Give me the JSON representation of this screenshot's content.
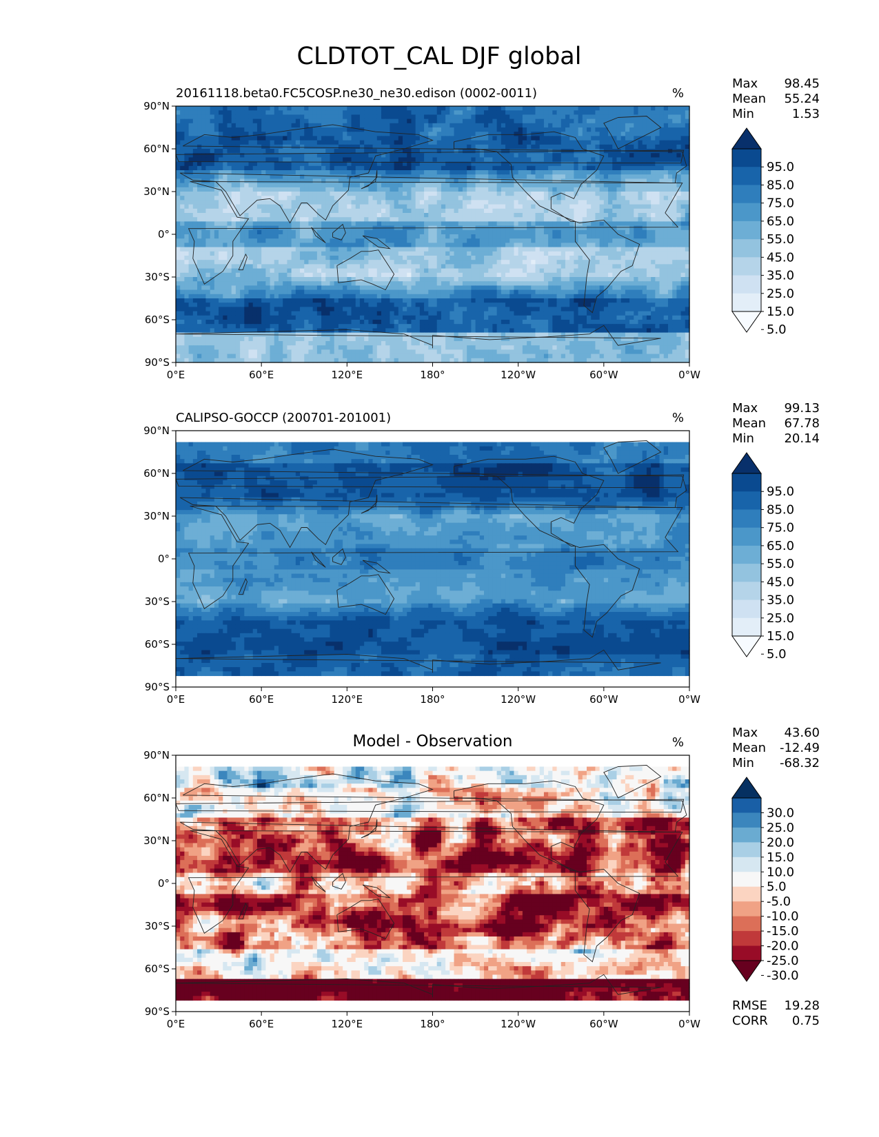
{
  "figure_title": "CLDTOT_CAL DJF global",
  "colors": {
    "blues": [
      "#f7fbff",
      "#e3eef8",
      "#cfe1f2",
      "#b5d4e9",
      "#93c3df",
      "#6daed5",
      "#4b97c9",
      "#2f7ebc",
      "#1864aa",
      "#0a4a90",
      "#08306b"
    ],
    "diff": [
      "#67001f",
      "#980c27",
      "#c0393a",
      "#dc6f58",
      "#f0a285",
      "#fbd4c1",
      "#f7f7f7",
      "#d6e7f1",
      "#a9cfe5",
      "#6aabd1",
      "#3b86bd",
      "#195fa6",
      "#053061"
    ],
    "continent_line": "#222222"
  },
  "chart_data": [
    {
      "type": "heatmap",
      "title_left": "20161118.beta0.FC5COSP.ne30_ne30.edison (0002-0011)",
      "title_center": "",
      "units": "%",
      "stats": [
        {
          "label": "Max",
          "value": "98.45"
        },
        {
          "label": "Mean",
          "value": "55.24"
        },
        {
          "label": "Min",
          "value": "1.53"
        }
      ],
      "colorbar_levels": [
        "95.0",
        "85.0",
        "75.0",
        "65.0",
        "55.0",
        "45.0",
        "35.0",
        "25.0",
        "15.0",
        "5.0"
      ],
      "extra_stats": [],
      "lat_range": [
        -90,
        90
      ],
      "y_ticks": [
        "90°N",
        "60°N",
        "30°N",
        "0°",
        "30°S",
        "60°S",
        "90°S"
      ],
      "x_ticks": [
        "0°E",
        "60°E",
        "120°E",
        "180°",
        "120°W",
        "60°W",
        "0°W"
      ]
    },
    {
      "type": "heatmap",
      "title_left": "CALIPSO-GOCCP (200701-201001)",
      "title_center": "",
      "units": "%",
      "stats": [
        {
          "label": "Max",
          "value": "99.13"
        },
        {
          "label": "Mean",
          "value": "67.78"
        },
        {
          "label": "Min",
          "value": "20.14"
        }
      ],
      "colorbar_levels": [
        "95.0",
        "85.0",
        "75.0",
        "65.0",
        "55.0",
        "45.0",
        "35.0",
        "25.0",
        "15.0",
        "5.0"
      ],
      "extra_stats": [],
      "lat_range": [
        -82,
        82
      ],
      "y_ticks": [
        "90°N",
        "60°N",
        "30°N",
        "0°",
        "30°S",
        "60°S",
        "90°S"
      ],
      "x_ticks": [
        "0°E",
        "60°E",
        "120°E",
        "180°",
        "120°W",
        "60°W",
        "0°W"
      ]
    },
    {
      "type": "heatmap",
      "title_left": "",
      "title_center": "Model - Observation",
      "units": "%",
      "stats": [
        {
          "label": "Max",
          "value": "43.60"
        },
        {
          "label": "Mean",
          "value": "-12.49"
        },
        {
          "label": "Min",
          "value": "-68.32"
        }
      ],
      "colorbar_levels": [
        "30.0",
        "25.0",
        "20.0",
        "15.0",
        "10.0",
        "5.0",
        "-5.0",
        "-10.0",
        "-15.0",
        "-20.0",
        "-25.0",
        "-30.0"
      ],
      "extra_stats": [
        {
          "label": "RMSE",
          "value": "19.28"
        },
        {
          "label": "CORR",
          "value": "0.75"
        }
      ],
      "lat_range": [
        -82,
        82
      ],
      "y_ticks": [
        "90°N",
        "60°N",
        "30°N",
        "0°",
        "30°S",
        "60°S",
        "90°S"
      ],
      "x_ticks": [
        "0°E",
        "60°E",
        "120°E",
        "180°",
        "120°W",
        "60°W",
        "0°W"
      ]
    }
  ]
}
